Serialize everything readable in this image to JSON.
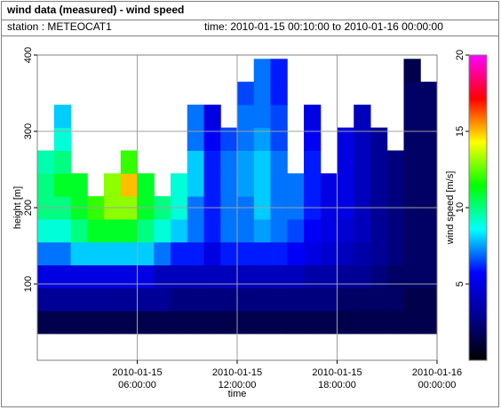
{
  "chart_data": {
    "type": "heatmap",
    "title": "wind data (measured) - wind speed",
    "station": "station : METEOCAT1",
    "time_range": "time: 2010-01-15 00:10:00 to 2010-01-16 00:00:00",
    "x_label": "time",
    "y_label": "height [m]",
    "colorbar_label": "wind speed [m/s]",
    "x": [
      0.5,
      1.5,
      2.5,
      3.5,
      4.5,
      5.5,
      6.5,
      7.5,
      8.5,
      9.5,
      10.5,
      11.5,
      12.5,
      13.5,
      14.5,
      15.5,
      16.5,
      17.5,
      18.5,
      19.5,
      20.5,
      21.5,
      22.5,
      23.5
    ],
    "y": [
      50,
      80,
      110,
      140,
      170,
      200,
      230,
      260,
      290,
      320,
      350,
      380
    ],
    "values": [
      [
        1.5,
        3,
        5,
        7,
        9,
        10,
        10,
        9.5,
        null,
        null,
        null,
        null
      ],
      [
        1.5,
        3,
        5,
        7,
        9,
        10,
        11,
        10,
        9,
        8,
        null,
        null
      ],
      [
        1.5,
        3,
        5,
        8,
        10,
        11,
        11,
        null,
        null,
        null,
        null,
        null
      ],
      [
        1.5,
        3,
        5,
        8,
        11,
        12,
        null,
        null,
        null,
        null,
        null,
        null
      ],
      [
        1.5,
        3,
        5,
        8,
        11,
        13,
        13,
        null,
        null,
        null,
        null,
        null
      ],
      [
        1.5,
        3,
        5,
        8,
        11,
        13,
        15,
        12,
        null,
        null,
        null,
        null
      ],
      [
        1.5,
        3,
        5,
        8,
        10,
        11,
        11,
        null,
        null,
        null,
        null,
        null
      ],
      [
        1.5,
        3,
        4,
        7,
        9,
        10,
        null,
        null,
        null,
        null,
        null,
        null
      ],
      [
        1.5,
        2.5,
        4,
        6,
        8,
        9,
        9,
        null,
        null,
        null,
        null,
        null
      ],
      [
        1.5,
        2.5,
        4,
        6,
        7,
        7,
        8,
        8,
        7,
        7,
        null,
        null
      ],
      [
        1.5,
        2.5,
        4,
        5,
        6,
        6,
        6,
        6,
        5.5,
        5,
        null,
        null
      ],
      [
        1.5,
        2.5,
        4,
        6,
        7,
        7,
        7,
        7,
        6.5,
        null,
        null,
        null
      ],
      [
        1.5,
        2.5,
        4,
        6,
        7,
        7,
        7.5,
        7.5,
        7,
        7,
        6.5,
        null
      ],
      [
        1.5,
        2.5,
        4,
        6,
        7.5,
        8,
        8,
        8,
        7.5,
        7,
        7,
        7
      ],
      [
        1.5,
        2.5,
        4,
        6,
        7,
        7,
        7,
        7,
        6.5,
        6.5,
        6,
        6
      ],
      [
        1.5,
        2.5,
        4,
        5.5,
        6.5,
        7,
        7,
        null,
        null,
        null,
        null,
        null
      ],
      [
        1.5,
        2.5,
        3.5,
        5,
        5.5,
        6,
        6,
        6,
        5.5,
        5,
        null,
        null
      ],
      [
        1.5,
        2.5,
        3.5,
        4.5,
        5,
        5,
        5,
        null,
        null,
        null,
        null,
        null
      ],
      [
        1.5,
        2,
        3,
        4,
        4.5,
        5,
        5,
        5,
        5,
        null,
        null,
        null
      ],
      [
        1.5,
        2,
        3,
        3.5,
        4,
        4,
        4,
        4,
        4,
        4,
        null,
        null
      ],
      [
        1.5,
        2,
        2.5,
        3,
        3,
        3,
        3,
        3,
        3,
        null,
        null,
        null
      ],
      [
        1.5,
        2,
        2,
        2.5,
        2.5,
        2.5,
        2.5,
        2.5,
        null,
        null,
        null,
        null
      ],
      [
        1.5,
        1.5,
        2,
        2,
        2,
        2,
        2,
        2,
        2,
        2,
        2,
        1.5
      ],
      [
        1.5,
        1.5,
        2,
        2,
        2,
        2,
        2,
        2,
        2,
        2,
        2,
        null
      ]
    ],
    "xlim": [
      0,
      24
    ],
    "xticks": [
      {
        "value": 6,
        "label": "2010-01-15 06:00:00"
      },
      {
        "value": 12,
        "label": "2010-01-15 12:00:00"
      },
      {
        "value": 18,
        "label": "2010-01-15 18:00:00"
      },
      {
        "value": 24,
        "label": "2010-01-16 00:00:00"
      }
    ],
    "ylim": [
      0,
      400
    ],
    "yticks": [
      100,
      200,
      300,
      400
    ],
    "clim": [
      0,
      20
    ],
    "cticks": [
      5,
      10,
      15,
      20
    ],
    "colormap": [
      "#000000",
      "#000090",
      "#0000ff",
      "#00ffff",
      "#00ff00",
      "#ffff00",
      "#ff0000",
      "#ff00ff"
    ],
    "grid": true
  }
}
